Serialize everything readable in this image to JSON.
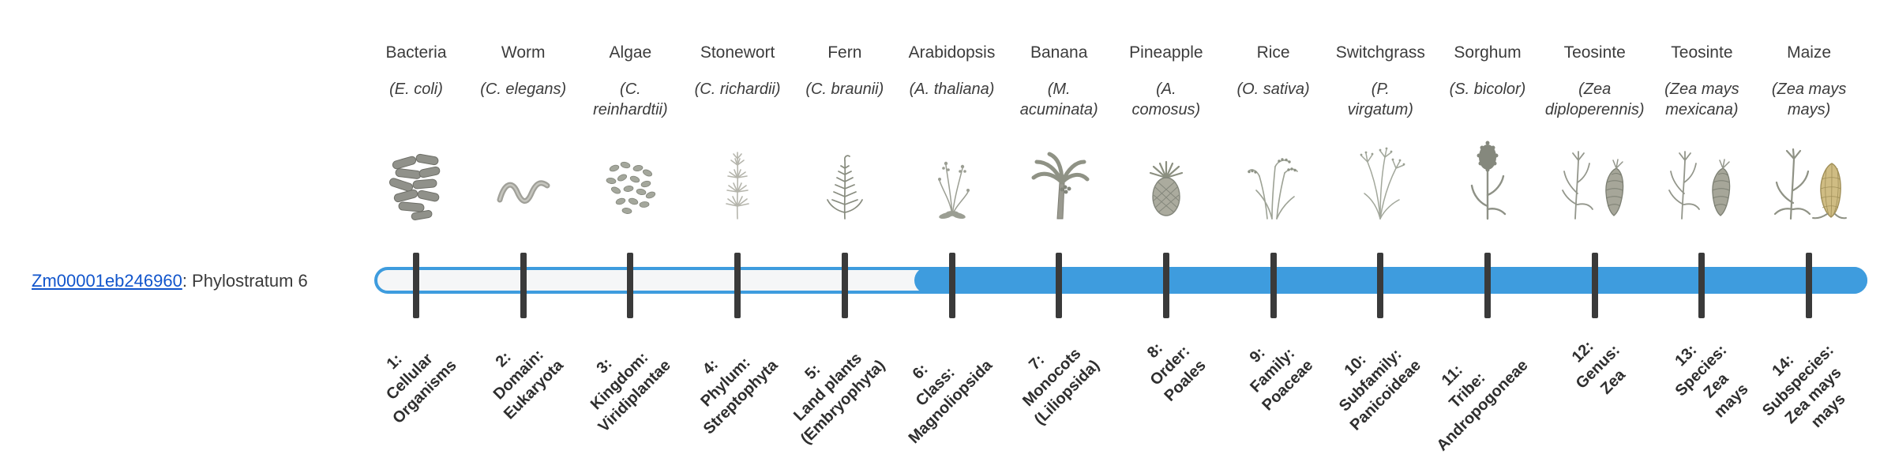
{
  "gene": {
    "id": "Zm00001eb246960",
    "rest": ": Phylostratum 6",
    "phylostratum": 6
  },
  "colors": {
    "bar_fill": "#3E9CDE",
    "bar_empty": "#F5F6F7",
    "tick": "#3A3A3A",
    "link": "#1155CC"
  },
  "organisms": [
    {
      "name": "Bacteria",
      "sci": "(E. coli)",
      "icon": "bacteria-icon",
      "stratum_label": "1:\nCellular\nOrganisms"
    },
    {
      "name": "Worm",
      "sci": "(C. elegans)",
      "icon": "worm-icon",
      "stratum_label": "2:\nDomain:\nEukaryota"
    },
    {
      "name": "Algae",
      "sci": "(C.\nreinhardtii)",
      "icon": "algae-icon",
      "stratum_label": "3:\nKingdom:\nViridiplantae"
    },
    {
      "name": "Stonewort",
      "sci": "(C. richardii)",
      "icon": "stonewort-icon",
      "stratum_label": "4:\nPhylum:\nStreptophyta"
    },
    {
      "name": "Fern",
      "sci": "(C. braunii)",
      "icon": "fern-icon",
      "stratum_label": "5:\nLand plants\n(Embryophyta)"
    },
    {
      "name": "Arabidopsis",
      "sci": "(A. thaliana)",
      "icon": "arabidopsis-icon",
      "stratum_label": "6:\nClass:\nMagnoliopsida"
    },
    {
      "name": "Banana",
      "sci": "(M.\nacuminata)",
      "icon": "banana-icon",
      "stratum_label": "7:\nMonocots\n(Liliopsida)"
    },
    {
      "name": "Pineapple",
      "sci": "(A.\ncomosus)",
      "icon": "pineapple-icon",
      "stratum_label": "8:\nOrder:\nPoales"
    },
    {
      "name": "Rice",
      "sci": "(O. sativa)",
      "icon": "rice-icon",
      "stratum_label": "9:\nFamily:\nPoaceae"
    },
    {
      "name": "Switchgrass",
      "sci": "(P.\nvirgatum)",
      "icon": "switchgrass-icon",
      "stratum_label": "10:\nSubfamily:\nPanicoideae"
    },
    {
      "name": "Sorghum",
      "sci": "(S. bicolor)",
      "icon": "sorghum-icon",
      "stratum_label": "11:\nTribe:\nAndropogoneae"
    },
    {
      "name": "Teosinte",
      "sci": "(Zea\ndiploperennis)",
      "icon": "teosinte-icon",
      "stratum_label": "12:\nGenus:\nZea"
    },
    {
      "name": "Teosinte",
      "sci": "(Zea mays\nmexicana)",
      "icon": "teosinte-icon",
      "stratum_label": "13:\nSpecies:\nZea\nmays"
    },
    {
      "name": "Maize",
      "sci": "(Zea mays\nmays)",
      "icon": "maize-icon",
      "stratum_label": "14:\nSubspecies:\nZea mays\nmays"
    }
  ]
}
